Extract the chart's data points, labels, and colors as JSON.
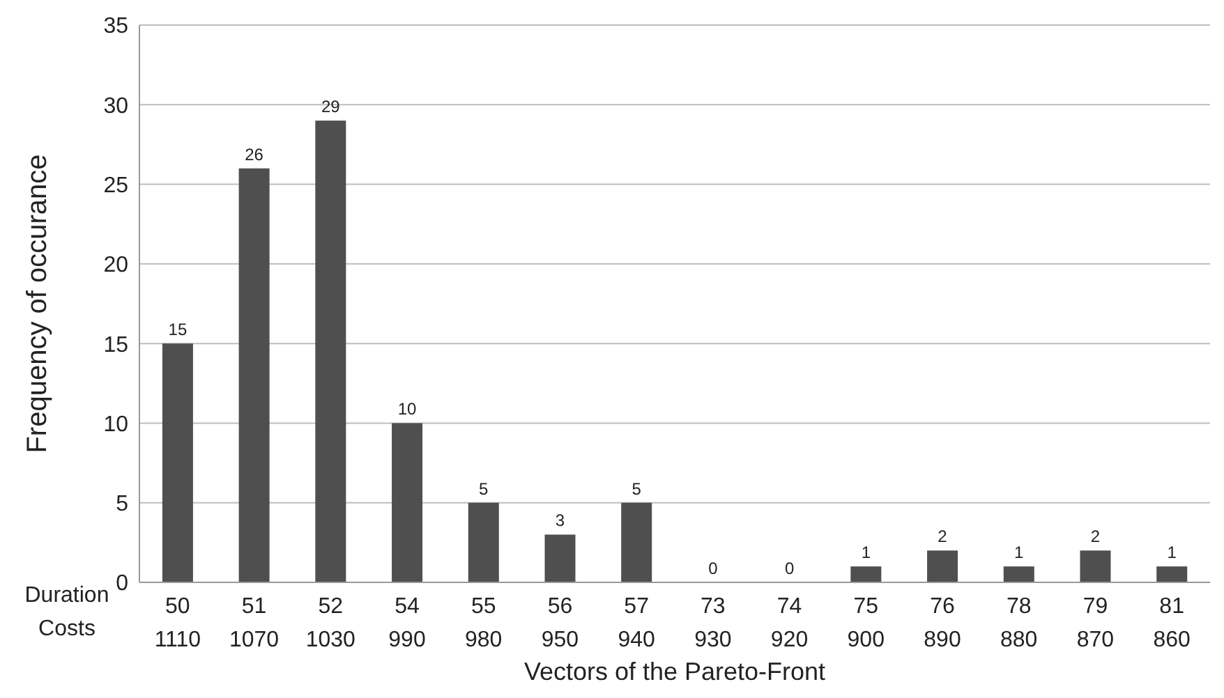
{
  "chart_data": {
    "type": "bar",
    "xlabel": "Vectors of the Pareto-Front",
    "ylabel": "Frequency of occurance",
    "categories": [
      "50\n1110",
      "51\n1070",
      "52\n1030",
      "54\n990",
      "55\n980",
      "56\n950",
      "57\n940",
      "73\n930",
      "74\n920",
      "75\n900",
      "76\n890",
      "78\n880",
      "79\n870",
      "81\n860"
    ],
    "values": [
      15,
      26,
      29,
      10,
      5,
      3,
      5,
      0,
      0,
      1,
      2,
      1,
      2,
      1
    ],
    "color": "#4f4f4f",
    "ylim": [
      0,
      35
    ],
    "yticks": [
      0,
      5,
      10,
      15,
      20,
      25,
      30,
      35
    ],
    "grid": "y",
    "data_labels": true,
    "annotations": [
      "Duration",
      "Costs"
    ]
  }
}
